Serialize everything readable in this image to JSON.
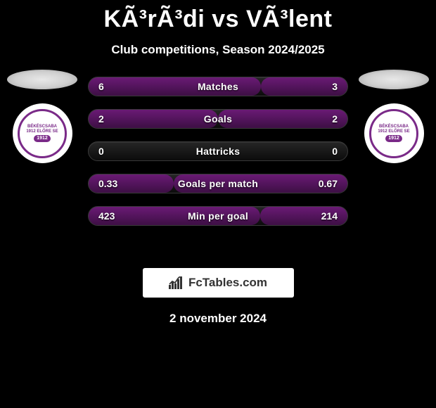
{
  "header": {
    "title": "KÃ³rÃ³di vs VÃ³lent",
    "subtitle": "Club competitions, Season 2024/2025"
  },
  "badge": {
    "ring_color": "#7a2a88",
    "top_text": "BÉKÉSCSABA",
    "mid_text": "1912 ELŐRE SE",
    "year": "1912"
  },
  "stats": {
    "bar_bg_gradient_from": "#262626",
    "bar_bg_gradient_to": "#0c0c0c",
    "fill_left_color": "#6a1a75",
    "fill_right_color": "#6a1a75",
    "rows": [
      {
        "label": "Matches",
        "left": "6",
        "right": "3",
        "left_pct": 66.6,
        "right_pct": 33.4
      },
      {
        "label": "Goals",
        "left": "2",
        "right": "2",
        "left_pct": 50,
        "right_pct": 50
      },
      {
        "label": "Hattricks",
        "left": "0",
        "right": "0",
        "left_pct": 0,
        "right_pct": 0
      },
      {
        "label": "Goals per match",
        "left": "0.33",
        "right": "0.67",
        "left_pct": 33,
        "right_pct": 67
      },
      {
        "label": "Min per goal",
        "left": "423",
        "right": "214",
        "left_pct": 66.4,
        "right_pct": 33.6
      }
    ]
  },
  "brand": {
    "text": "FcTables.com"
  },
  "footer": {
    "date": "2 november 2024"
  }
}
